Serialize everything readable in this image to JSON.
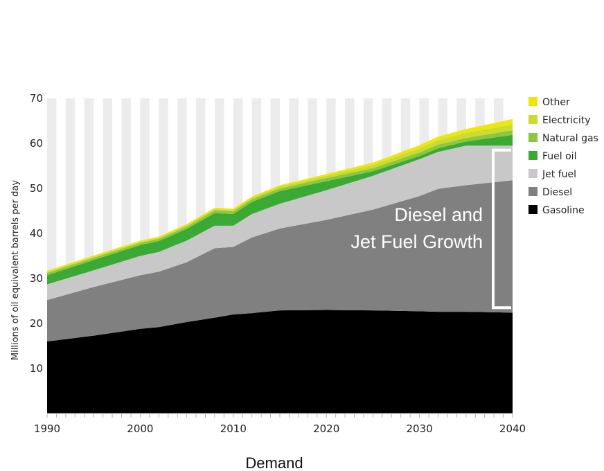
{
  "chart_data": {
    "type": "area",
    "stacked": true,
    "x": [
      1990,
      1995,
      2000,
      2002,
      2005,
      2008,
      2010,
      2012,
      2015,
      2020,
      2025,
      2030,
      2032,
      2035,
      2040
    ],
    "series": [
      {
        "name": "Gasoline",
        "color": "#000000",
        "values": [
          16,
          17.3,
          18.8,
          19.2,
          20.3,
          21.3,
          22.0,
          22.3,
          22.9,
          23.0,
          22.9,
          22.7,
          22.6,
          22.6,
          22.4
        ]
      },
      {
        "name": "Diesel",
        "color": "#808080",
        "values": [
          9.2,
          10.8,
          11.9,
          12.3,
          13.3,
          15.4,
          15.0,
          16.8,
          18.2,
          20.0,
          22.4,
          25.6,
          27.3,
          28.1,
          29.4
        ]
      },
      {
        "name": "Jet fuel",
        "color": "#c8c8c8",
        "values": [
          3.5,
          3.7,
          4.3,
          4.4,
          4.8,
          5.0,
          4.7,
          5.2,
          5.5,
          6.6,
          7.5,
          8.2,
          8.2,
          8.8,
          7.7
        ]
      },
      {
        "name": "Fuel oil",
        "color": "#3aaa35",
        "values": [
          2.0,
          2.3,
          2.4,
          2.4,
          2.6,
          2.8,
          2.6,
          2.7,
          2.8,
          2.0,
          1.0,
          0.7,
          0.8,
          0.9,
          2.4
        ]
      },
      {
        "name": "Natural gas",
        "color": "#8dc63f",
        "values": [
          0.5,
          0.5,
          0.5,
          0.5,
          0.5,
          0.6,
          0.6,
          0.6,
          0.6,
          0.7,
          0.7,
          0.8,
          0.8,
          0.8,
          1.0
        ]
      },
      {
        "name": "Electricity",
        "color": "#c9dc2f",
        "values": [
          0.2,
          0.2,
          0.2,
          0.2,
          0.3,
          0.3,
          0.3,
          0.3,
          0.4,
          0.5,
          0.7,
          0.9,
          1.0,
          1.1,
          1.3
        ]
      },
      {
        "name": "Other",
        "color": "#ede60c",
        "values": [
          0.3,
          0.3,
          0.3,
          0.3,
          0.3,
          0.3,
          0.3,
          0.3,
          0.3,
          0.4,
          0.5,
          0.7,
          0.8,
          0.9,
          1.2
        ]
      }
    ],
    "ylabel": "Millions of oil equivalent barrels per day",
    "xlim": [
      1990,
      2040
    ],
    "ylim": [
      0,
      70
    ],
    "xticks": [
      "1990",
      "2000",
      "2010",
      "2020",
      "2030",
      "2040"
    ],
    "yticks": [
      "10",
      "20",
      "30",
      "40",
      "50",
      "60",
      "70"
    ],
    "legend_position": "right",
    "legend_order": [
      "Other",
      "Electricity",
      "Natural gas",
      "Fuel oil",
      "Jet fuel",
      "Diesel",
      "Gasoline"
    ],
    "annotation": {
      "line1": "Diesel and",
      "line2": "Jet Fuel Growth",
      "bracket_range": [
        23.5,
        58.5
      ],
      "bracket_year": 2040
    },
    "caption": "Demand",
    "background_stripes": true
  }
}
